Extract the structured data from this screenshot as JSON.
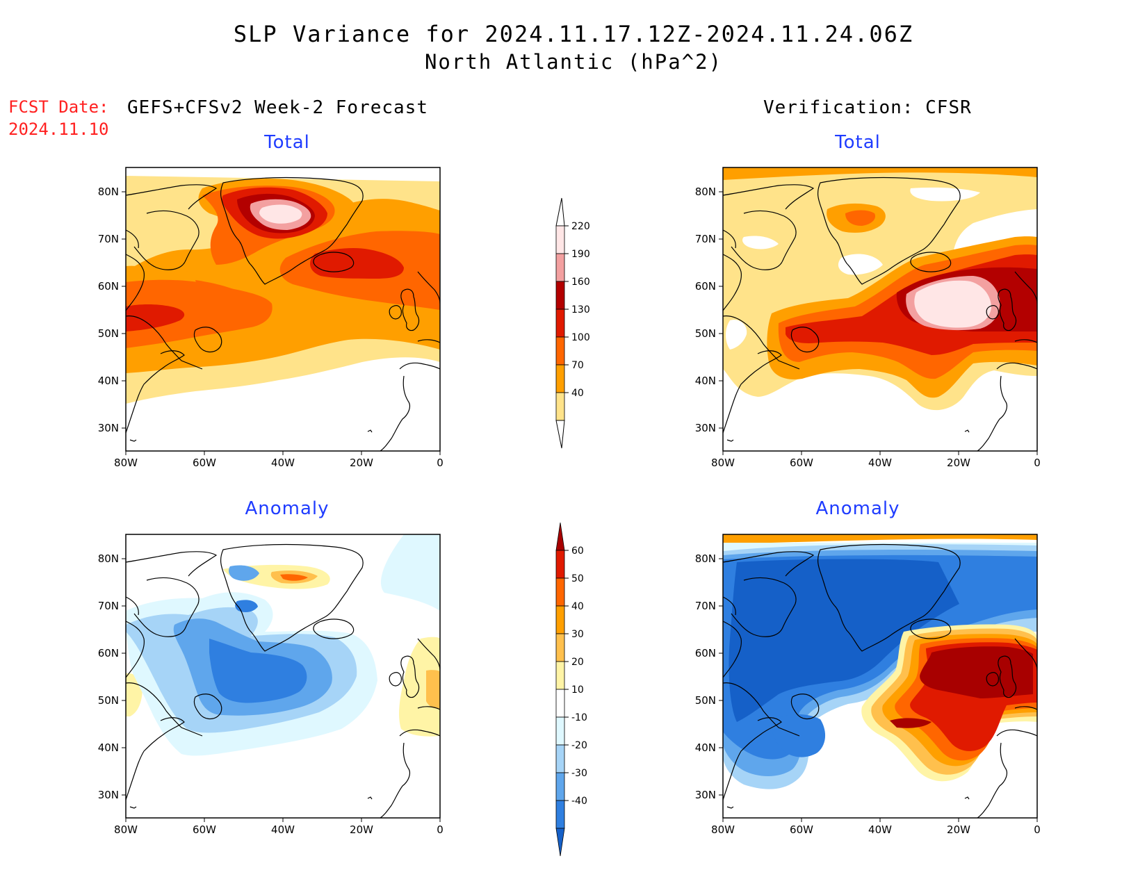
{
  "header": {
    "title_line1": "SLP Variance for 2024.11.17.12Z-2024.11.24.06Z",
    "title_line2": "North Atlantic (hPa^2)",
    "fcst_label": "FCST Date:",
    "fcst_date": "2024.11.10",
    "left_heading": "GEFS+CFSv2 Week-2 Forecast",
    "right_heading": "Verification: CFSR"
  },
  "panels": {
    "forecast_total": {
      "title": "Total"
    },
    "verification_total": {
      "title": "Total"
    },
    "forecast_anomaly": {
      "title": "Anomaly"
    },
    "verification_anomaly": {
      "title": "Anomaly"
    }
  },
  "axes": {
    "lat_labels": [
      "80N",
      "70N",
      "60N",
      "50N",
      "40N",
      "30N"
    ],
    "lon_labels": [
      "80W",
      "60W",
      "40W",
      "20W",
      "0"
    ]
  },
  "colorbars": {
    "total": {
      "labels": [
        "220",
        "190",
        "160",
        "130",
        "100",
        "70",
        "40"
      ],
      "colors": [
        "#ffe6e6",
        "#f3a0a0",
        "#b30000",
        "#e01a00",
        "#ff6600",
        "#ff9f00",
        "#ffe38a"
      ]
    },
    "anomaly": {
      "labels": [
        "60",
        "50",
        "40",
        "30",
        "20",
        "10",
        "-10",
        "-20",
        "-30",
        "-40"
      ],
      "colors": [
        "#a80000",
        "#e01a00",
        "#ff6600",
        "#ff9f00",
        "#ffc04d",
        "#fff4a6",
        "#ffffff",
        "#dff8ff",
        "#a6d4f7",
        "#5fa6ec",
        "#2f7fe0",
        "#1560c8"
      ]
    }
  }
}
